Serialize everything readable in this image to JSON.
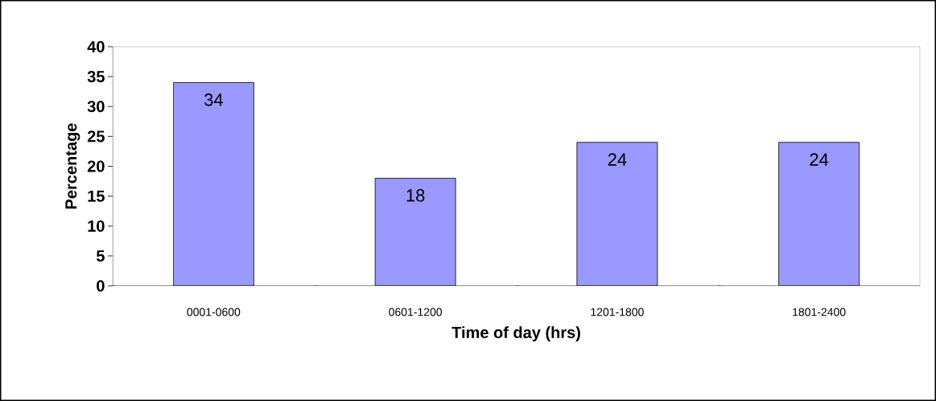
{
  "chart_data": {
    "type": "bar",
    "xlabel": "Time of day (hrs)",
    "ylabel": "Percentage",
    "categories": [
      "0001-0600",
      "0601-1200",
      "1201-1800",
      "1801-2400"
    ],
    "values": [
      34,
      18,
      24,
      24
    ],
    "color": "#9999ff",
    "ylim": [
      0,
      40
    ],
    "yticks": [
      0,
      5,
      10,
      15,
      20,
      25,
      30,
      35,
      40
    ],
    "data_labels": true,
    "grid": false
  }
}
